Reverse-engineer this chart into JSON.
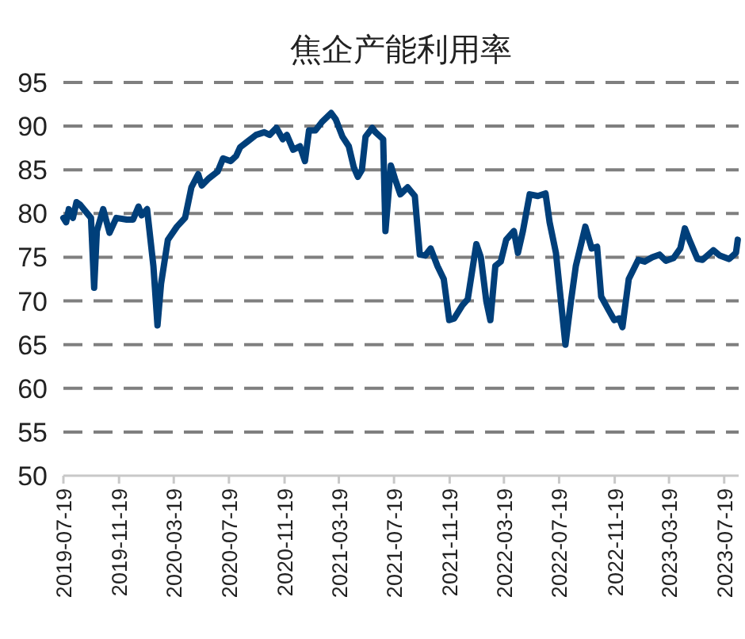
{
  "chart_data": {
    "type": "line",
    "title": "焦企产能利用率",
    "x": [
      "2019-07-19",
      "2019-07-25",
      "2019-07-31",
      "2019-08-09",
      "2019-08-17",
      "2019-08-25",
      "2019-09-10",
      "2019-09-18",
      "2019-09-25",
      "2019-10-01",
      "2019-10-15",
      "2019-10-29",
      "2019-11-13",
      "2019-12-06",
      "2019-12-20",
      "2020-01-01",
      "2020-01-08",
      "2020-01-20",
      "2020-02-03",
      "2020-02-12",
      "2020-02-20",
      "2020-03-06",
      "2020-03-26",
      "2020-04-13",
      "2020-04-27",
      "2020-05-12",
      "2020-05-20",
      "2020-06-04",
      "2020-06-24",
      "2020-07-06",
      "2020-07-23",
      "2020-08-04",
      "2020-08-13",
      "2020-08-28",
      "2020-09-17",
      "2020-10-05",
      "2020-10-17",
      "2020-11-01",
      "2020-11-15",
      "2020-11-24",
      "2020-12-08",
      "2020-12-23",
      "2021-01-03",
      "2021-01-12",
      "2021-01-26",
      "2021-02-10",
      "2021-03-02",
      "2021-03-12",
      "2021-03-27",
      "2021-04-10",
      "2021-04-21",
      "2021-04-30",
      "2021-05-09",
      "2021-05-17",
      "2021-06-01",
      "2021-06-08",
      "2021-06-25",
      "2021-06-30",
      "2021-07-12",
      "2021-07-21",
      "2021-08-02",
      "2021-08-18",
      "2021-09-03",
      "2021-09-14",
      "2021-09-26",
      "2021-10-08",
      "2021-10-23",
      "2021-11-06",
      "2021-11-18",
      "2021-11-29",
      "2021-12-17",
      "2021-12-29",
      "2022-01-17",
      "2022-01-27",
      "2022-02-08",
      "2022-02-17",
      "2022-02-28",
      "2022-03-12",
      "2022-03-24",
      "2022-04-10",
      "2022-04-19",
      "2022-04-30",
      "2022-05-15",
      "2022-06-02",
      "2022-06-19",
      "2022-06-28",
      "2022-07-12",
      "2022-07-23",
      "2022-08-02",
      "2022-08-13",
      "2022-08-25",
      "2022-09-15",
      "2022-09-29",
      "2022-10-11",
      "2022-10-20",
      "2022-11-05",
      "2022-11-18",
      "2022-11-29",
      "2022-12-06",
      "2022-12-20",
      "2023-01-10",
      "2023-01-24",
      "2023-02-10",
      "2023-02-26",
      "2023-03-12",
      "2023-03-29",
      "2023-04-13",
      "2023-04-23",
      "2023-05-03",
      "2023-05-21",
      "2023-06-01",
      "2023-06-25",
      "2023-07-09",
      "2023-07-30",
      "2023-08-14",
      "2023-08-18"
    ],
    "series": [
      {
        "color": "#003f7a",
        "values": [
          79.5,
          79,
          80.5,
          79.5,
          81.3,
          81,
          80,
          79.5,
          71.5,
          78,
          80.5,
          77.8,
          79.5,
          79.3,
          79.3,
          80.8,
          79.8,
          80.5,
          74,
          67.2,
          72,
          77,
          78.5,
          79.5,
          83,
          84.5,
          83.2,
          84,
          84.8,
          86.3,
          86,
          86.6,
          87.6,
          88.2,
          89,
          89.3,
          89,
          89.8,
          88.5,
          89,
          87.3,
          87.7,
          86,
          89.5,
          89.5,
          90.5,
          91.5,
          90.8,
          88.8,
          87.7,
          85.3,
          84.2,
          85,
          88.8,
          89.8,
          89.3,
          88.5,
          78,
          85.5,
          84,
          82.2,
          83,
          82,
          75.3,
          75.2,
          76,
          74,
          72.5,
          67.8,
          68,
          69.5,
          70.2,
          76.5,
          75,
          70,
          67.8,
          74,
          74.5,
          77,
          78,
          75.5,
          78,
          82.2,
          82,
          82.3,
          79,
          75.5,
          70,
          65,
          69.5,
          74,
          78.5,
          76,
          76.2,
          70.5,
          69,
          67.8,
          68,
          67,
          72.5,
          74.7,
          74.5,
          75,
          75.3,
          74.6,
          74.9,
          76,
          78.3,
          77,
          74.8,
          74.7,
          75.8,
          75.2,
          74.8,
          75.5,
          77
        ]
      }
    ],
    "xlim": [
      "2019-07-19",
      "2023-08-20"
    ],
    "xticks": [
      "2019-07-19",
      "2019-11-19",
      "2020-03-19",
      "2020-07-19",
      "2020-11-19",
      "2021-03-19",
      "2021-07-19",
      "2021-11-19",
      "2022-03-19",
      "2022-07-19",
      "2022-11-19",
      "2023-03-19",
      "2023-07-19"
    ],
    "ylim": [
      50,
      95
    ],
    "yticks": [
      50,
      55,
      60,
      65,
      70,
      75,
      80,
      85,
      90,
      95
    ],
    "grid": "y"
  }
}
